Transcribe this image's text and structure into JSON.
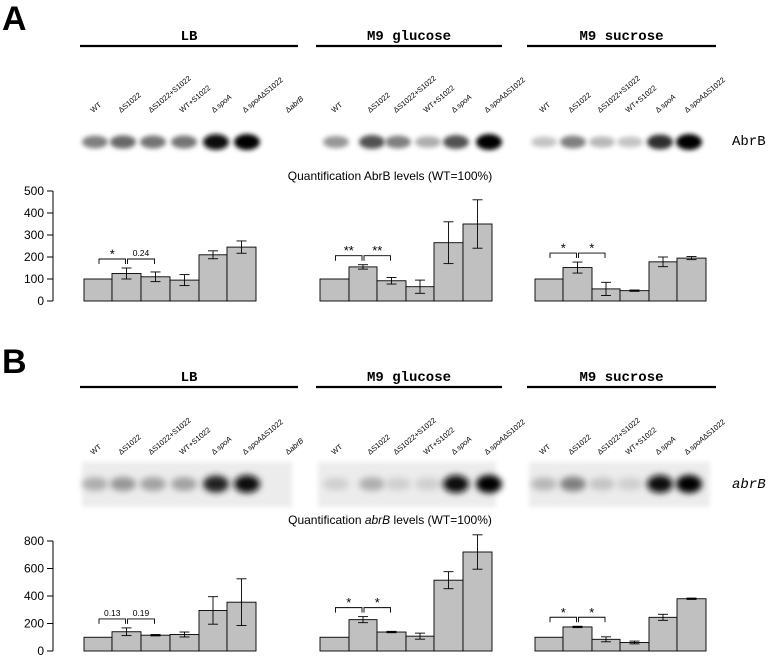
{
  "lane_labels": [
    "WT",
    "ΔS1022",
    "ΔS1022+S1022",
    "WT+S1022",
    "ΔspoA",
    "ΔspoAΔS1022",
    "ΔabrB"
  ],
  "conditions": [
    "LB",
    "M9 glucose",
    "M9 sucrose"
  ],
  "panels": [
    {
      "letter": "A",
      "target_label": "AbrB",
      "quant_title_pre": "Quantification ",
      "quant_title_gene": "AbrB",
      "quant_title_post": " levels (WT=100%)",
      "band_intensity": [
        [
          0.45,
          0.55,
          0.5,
          0.5,
          0.95,
          1.0,
          0.0
        ],
        [
          0.35,
          0.65,
          0.45,
          0.25,
          0.65,
          1.0
        ],
        [
          0.15,
          0.45,
          0.2,
          0.15,
          0.8,
          1.0
        ]
      ]
    },
    {
      "letter": "B",
      "target_label": "abrB",
      "quant_title_pre": "Quantification ",
      "quant_title_gene": "abrB",
      "quant_title_post": " levels (WT=100%)",
      "band_intensity": [
        [
          0.25,
          0.35,
          0.3,
          0.3,
          0.85,
          0.95,
          0.0
        ],
        [
          0.1,
          0.25,
          0.1,
          0.1,
          0.95,
          1.0
        ],
        [
          0.2,
          0.45,
          0.15,
          0.1,
          0.95,
          1.0
        ]
      ]
    }
  ],
  "chart_data": [
    {
      "type": "bar",
      "title": "Quantification AbrB levels (WT=100%)",
      "ylim": [
        0,
        500
      ],
      "yticks": [
        0,
        100,
        200,
        300,
        400,
        500
      ],
      "groups": [
        {
          "name": "LB",
          "categories": [
            "WT",
            "ΔS1022",
            "ΔS1022+S1022",
            "WT+S1022",
            "ΔspoA",
            "ΔspoAΔS1022"
          ],
          "values": [
            100,
            125,
            110,
            95,
            210,
            245
          ],
          "errors": [
            0,
            25,
            22,
            25,
            18,
            28
          ],
          "annotations": [
            {
              "from": 0,
              "to": 1,
              "label": "*"
            },
            {
              "from": 1,
              "to": 2,
              "label": "0.24"
            }
          ]
        },
        {
          "name": "M9 glucose",
          "categories": [
            "WT",
            "ΔS1022",
            "ΔS1022+S1022",
            "WT+S1022",
            "ΔspoA",
            "ΔspoAΔS1022"
          ],
          "values": [
            100,
            155,
            92,
            65,
            265,
            350
          ],
          "errors": [
            0,
            10,
            15,
            30,
            95,
            110
          ],
          "annotations": [
            {
              "from": 0,
              "to": 1,
              "label": "**"
            },
            {
              "from": 1,
              "to": 2,
              "label": "**"
            }
          ]
        },
        {
          "name": "M9 sucrose",
          "categories": [
            "WT",
            "ΔS1022",
            "ΔS1022+S1022",
            "WT+S1022",
            "ΔspoA",
            "ΔspoAΔS1022"
          ],
          "values": [
            100,
            152,
            55,
            47,
            178,
            195
          ],
          "errors": [
            0,
            25,
            30,
            3,
            22,
            7
          ],
          "annotations": [
            {
              "from": 0,
              "to": 1,
              "label": "*"
            },
            {
              "from": 1,
              "to": 2,
              "label": "*"
            }
          ]
        }
      ]
    },
    {
      "type": "bar",
      "title": "Quantification abrB levels (WT=100%)",
      "ylim": [
        0,
        800
      ],
      "yticks": [
        0,
        200,
        400,
        600,
        800
      ],
      "groups": [
        {
          "name": "LB",
          "categories": [
            "WT",
            "ΔS1022",
            "ΔS1022+S1022",
            "WT+S1022",
            "ΔspoA",
            "ΔspoAΔS1022"
          ],
          "values": [
            100,
            140,
            115,
            120,
            295,
            355
          ],
          "errors": [
            0,
            28,
            5,
            18,
            100,
            170
          ],
          "annotations": [
            {
              "from": 0,
              "to": 1,
              "label": "0.13"
            },
            {
              "from": 1,
              "to": 2,
              "label": "0.19"
            }
          ]
        },
        {
          "name": "M9 glucose",
          "categories": [
            "WT",
            "ΔS1022",
            "ΔS1022+S1022",
            "WT+S1022",
            "ΔspoA",
            "ΔspoAΔS1022"
          ],
          "values": [
            100,
            228,
            138,
            108,
            515,
            720
          ],
          "errors": [
            0,
            22,
            5,
            22,
            62,
            125
          ],
          "annotations": [
            {
              "from": 0,
              "to": 1,
              "label": "*"
            },
            {
              "from": 1,
              "to": 2,
              "label": "*"
            }
          ]
        },
        {
          "name": "M9 sucrose",
          "categories": [
            "WT",
            "ΔS1022",
            "ΔS1022+S1022",
            "WT+S1022",
            "ΔspoA",
            "ΔspoAΔS1022"
          ],
          "values": [
            100,
            175,
            85,
            62,
            245,
            380
          ],
          "errors": [
            0,
            5,
            18,
            10,
            22,
            5
          ],
          "annotations": [
            {
              "from": 0,
              "to": 1,
              "label": "*"
            },
            {
              "from": 1,
              "to": 2,
              "label": "*"
            }
          ]
        }
      ]
    }
  ]
}
